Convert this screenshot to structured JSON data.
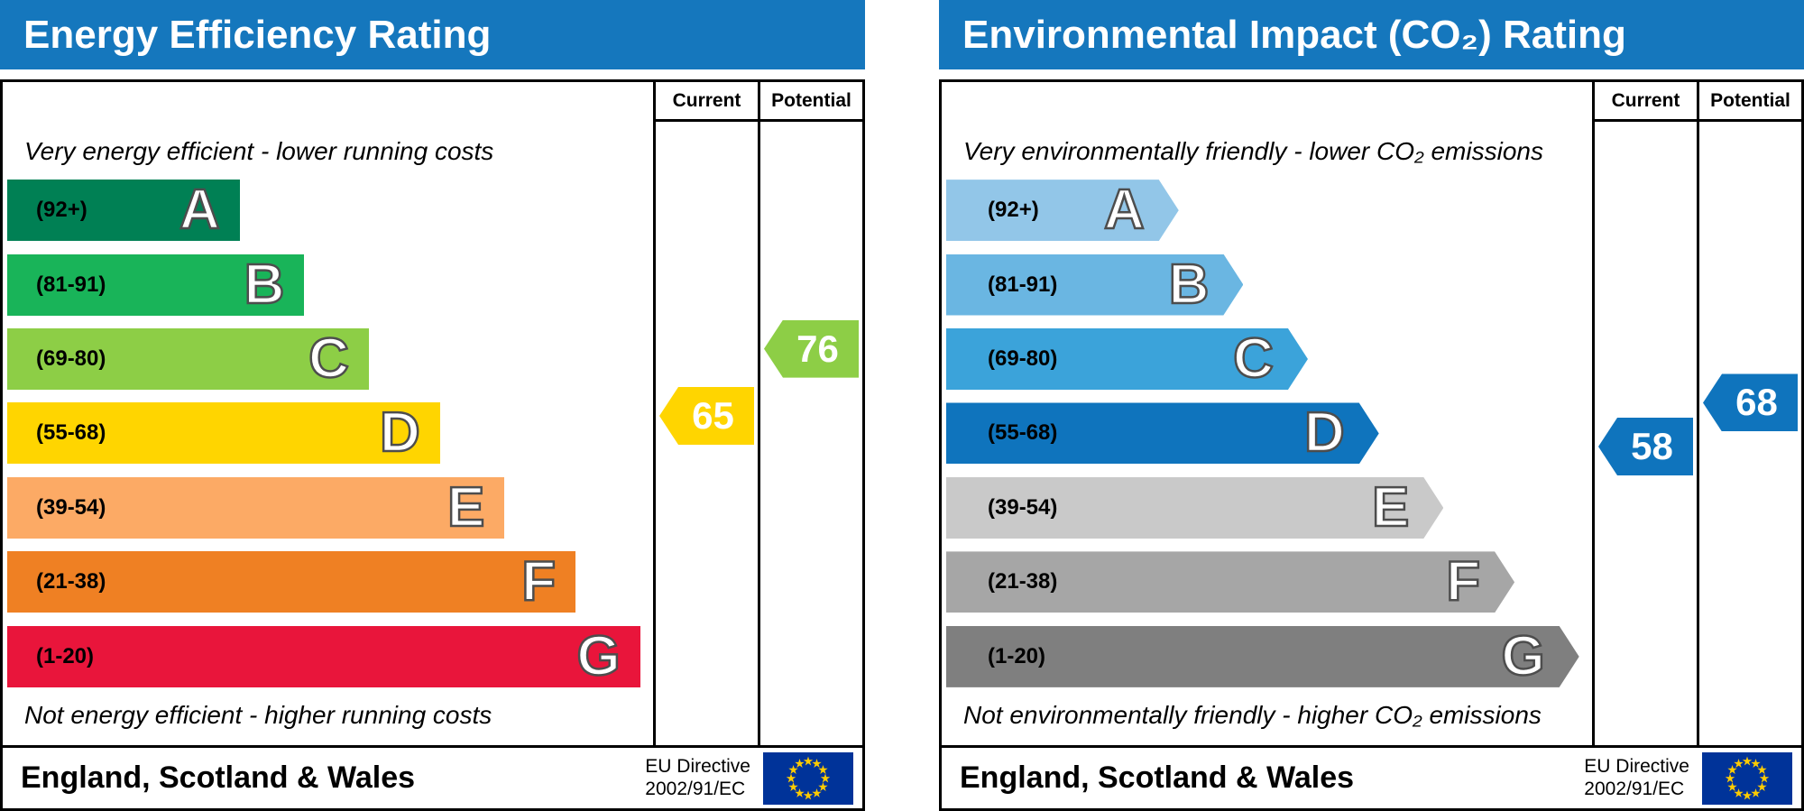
{
  "colors": {
    "header_bg": "#1577bd",
    "header_text": "#ffffff",
    "border": "#000000",
    "letter_outline": "#4d4d4d",
    "arrow_text": "#ffffff",
    "eu_flag_bg": "#003399",
    "eu_flag_star": "#ffcc00",
    "page_bg": "#ffffff"
  },
  "panels": [
    {
      "key": "energy",
      "title": "Energy Efficiency Rating",
      "columns": {
        "current": "Current",
        "potential": "Potential"
      },
      "caption_top": "Very energy efficient - lower running costs",
      "caption_bottom": "Not energy efficient - higher running costs",
      "bands": [
        {
          "letter": "A",
          "range": "(92+)",
          "min": 92,
          "max": 100,
          "color": "#008054",
          "width_pct": 36
        },
        {
          "letter": "B",
          "range": "(81-91)",
          "min": 81,
          "max": 91,
          "color": "#19b459",
          "width_pct": 46
        },
        {
          "letter": "C",
          "range": "(69-80)",
          "min": 69,
          "max": 80,
          "color": "#8dce46",
          "width_pct": 56
        },
        {
          "letter": "D",
          "range": "(55-68)",
          "min": 55,
          "max": 68,
          "color": "#ffd500",
          "width_pct": 67
        },
        {
          "letter": "E",
          "range": "(39-54)",
          "min": 39,
          "max": 54,
          "color": "#fcaa65",
          "width_pct": 77
        },
        {
          "letter": "F",
          "range": "(21-38)",
          "min": 21,
          "max": 38,
          "color": "#ef8023",
          "width_pct": 88
        },
        {
          "letter": "G",
          "range": "(1-20)",
          "min": 1,
          "max": 20,
          "color": "#e9153b",
          "width_pct": 98
        }
      ],
      "current": {
        "value": 65,
        "color": "#ffd500"
      },
      "potential": {
        "value": 76,
        "color": "#8dce46"
      },
      "footer": {
        "region": "England, Scotland & Wales",
        "directive_line1": "EU Directive",
        "directive_line2": "2002/91/EC"
      }
    },
    {
      "key": "co2",
      "title": "Environmental Impact (CO₂) Rating",
      "columns": {
        "current": "Current",
        "potential": "Potential"
      },
      "caption_top": "Very environmentally friendly - lower CO₂ emissions",
      "caption_bottom": "Not environmentally friendly - higher CO₂ emissions",
      "bands": [
        {
          "letter": "A",
          "range": "(92+)",
          "min": 92,
          "max": 100,
          "color": "#92c6e8",
          "width_pct": 36
        },
        {
          "letter": "B",
          "range": "(81-91)",
          "min": 81,
          "max": 91,
          "color": "#6ab6e2",
          "width_pct": 46
        },
        {
          "letter": "C",
          "range": "(69-80)",
          "min": 69,
          "max": 80,
          "color": "#3ba3da",
          "width_pct": 56
        },
        {
          "letter": "D",
          "range": "(55-68)",
          "min": 55,
          "max": 68,
          "color": "#0f74bd",
          "width_pct": 67
        },
        {
          "letter": "E",
          "range": "(39-54)",
          "min": 39,
          "max": 54,
          "color": "#c9c9c9",
          "width_pct": 77
        },
        {
          "letter": "F",
          "range": "(21-38)",
          "min": 21,
          "max": 38,
          "color": "#a6a6a6",
          "width_pct": 88
        },
        {
          "letter": "G",
          "range": "(1-20)",
          "min": 1,
          "max": 20,
          "color": "#7f7f7f",
          "width_pct": 98
        }
      ],
      "current": {
        "value": 58,
        "color": "#0f74bd"
      },
      "potential": {
        "value": 68,
        "color": "#0f74bd"
      },
      "footer": {
        "region": "England, Scotland & Wales",
        "directive_line1": "EU Directive",
        "directive_line2": "2002/91/EC"
      }
    }
  ],
  "chart_data": [
    {
      "type": "bar",
      "orientation": "horizontal",
      "title": "Energy Efficiency Rating",
      "categories": [
        "A (92+)",
        "B (81-91)",
        "C (69-80)",
        "D (55-68)",
        "E (39-54)",
        "F (21-38)",
        "G (1-20)"
      ],
      "band_lengths_relative": [
        36,
        46,
        56,
        67,
        77,
        88,
        98
      ],
      "markers": [
        {
          "name": "Current",
          "value": 65,
          "band": "D"
        },
        {
          "name": "Potential",
          "value": 76,
          "band": "C"
        }
      ],
      "annotations": [
        "Very energy efficient - lower running costs",
        "Not energy efficient - higher running costs"
      ],
      "footnote": "England, Scotland & Wales — EU Directive 2002/91/EC"
    },
    {
      "type": "bar",
      "orientation": "horizontal",
      "title": "Environmental Impact (CO₂) Rating",
      "categories": [
        "A (92+)",
        "B (81-91)",
        "C (69-80)",
        "D (55-68)",
        "E (39-54)",
        "F (21-38)",
        "G (1-20)"
      ],
      "band_lengths_relative": [
        36,
        46,
        56,
        67,
        77,
        88,
        98
      ],
      "markers": [
        {
          "name": "Current",
          "value": 58,
          "band": "D"
        },
        {
          "name": "Potential",
          "value": 68,
          "band": "D"
        }
      ],
      "annotations": [
        "Very environmentally friendly - lower CO₂ emissions",
        "Not environmentally friendly - higher CO₂ emissions"
      ],
      "footnote": "England, Scotland & Wales — EU Directive 2002/91/EC"
    }
  ]
}
